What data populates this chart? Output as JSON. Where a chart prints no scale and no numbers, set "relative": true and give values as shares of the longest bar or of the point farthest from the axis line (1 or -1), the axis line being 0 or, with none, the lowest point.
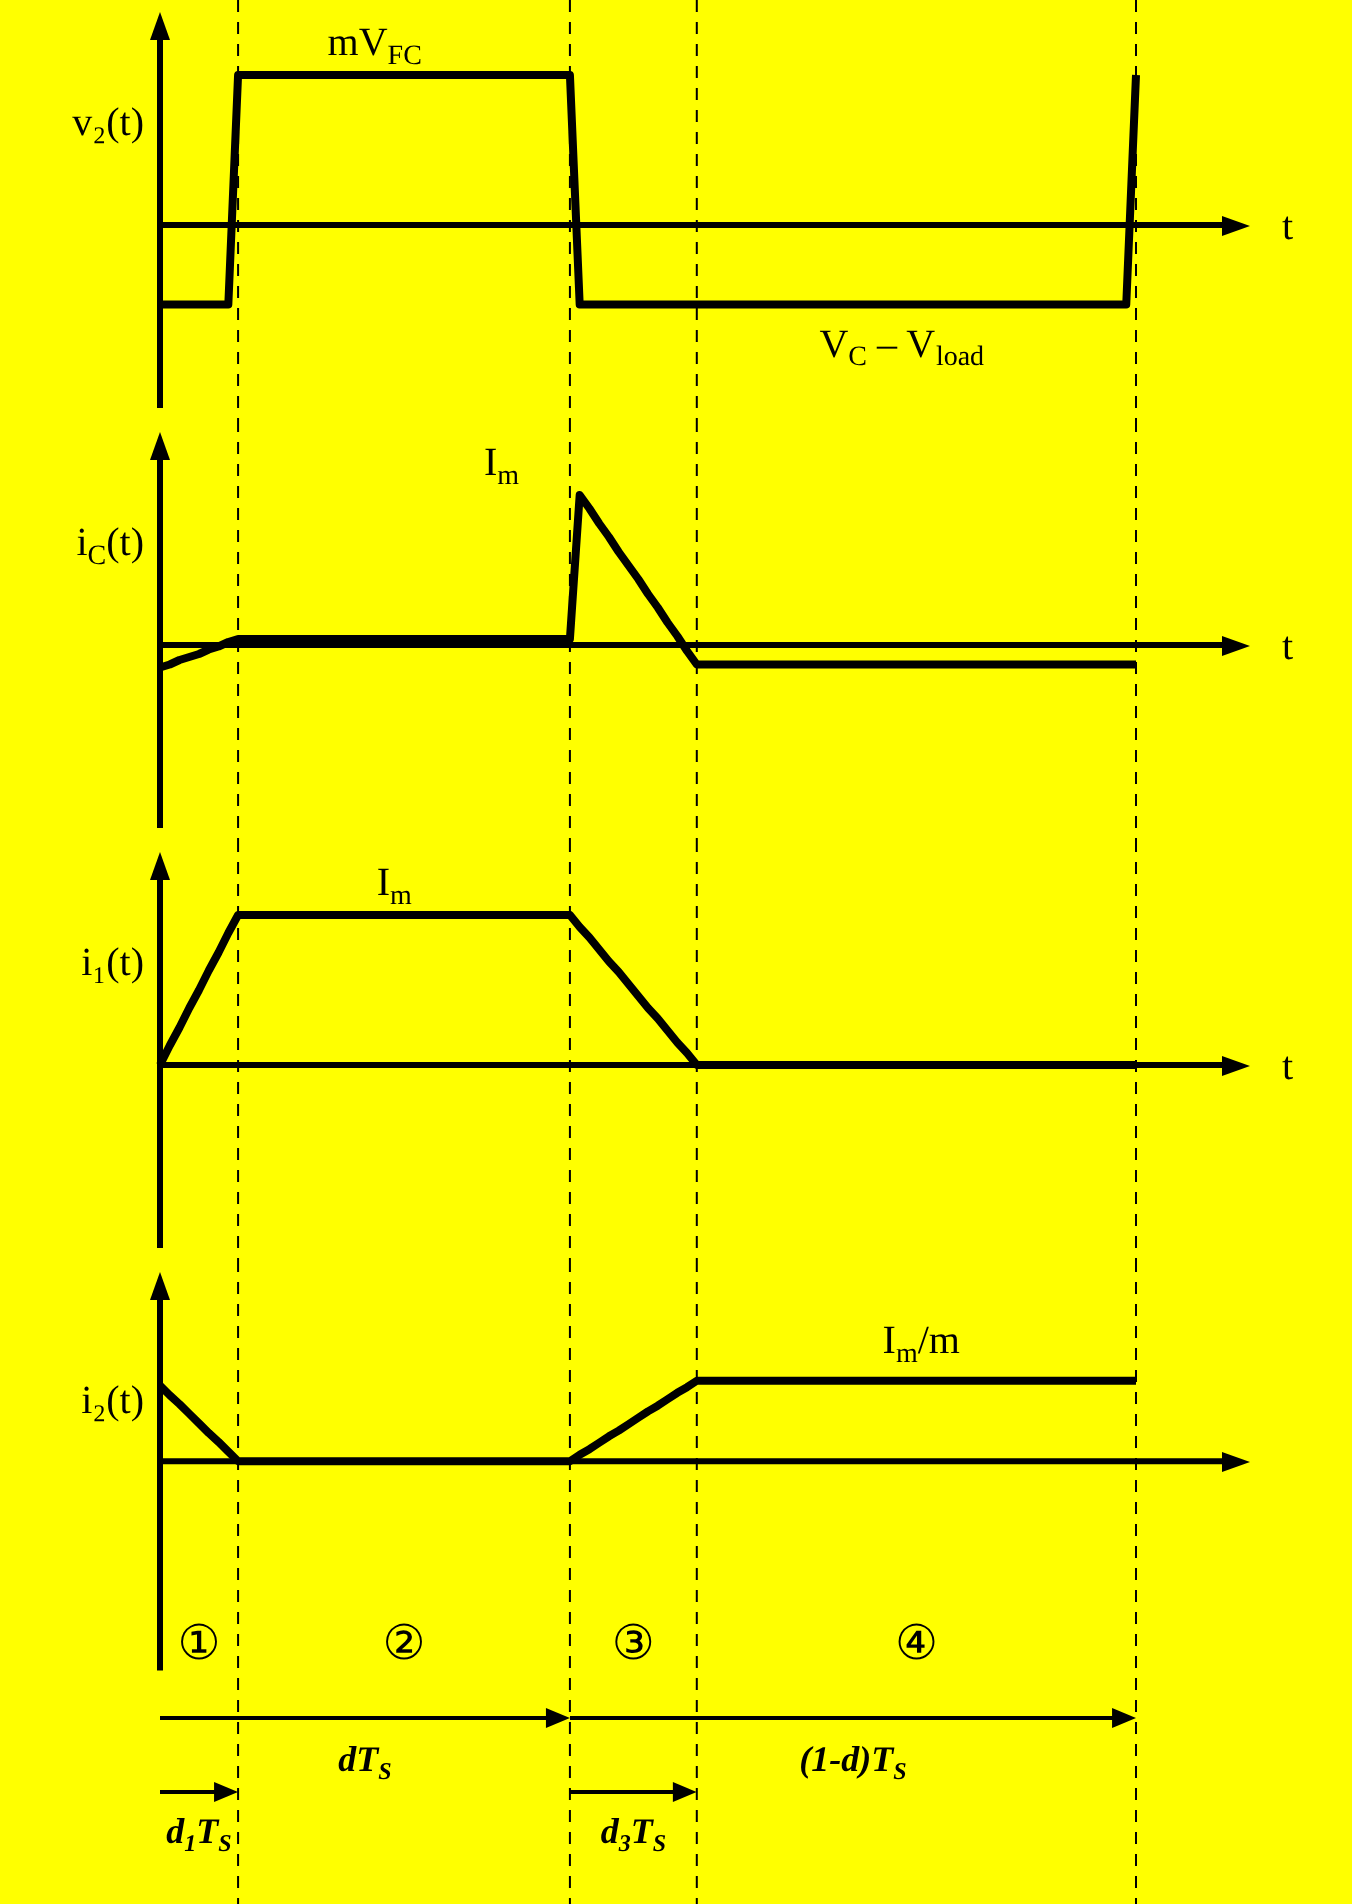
{
  "chart_data": [
    {
      "type": "line",
      "relative": true,
      "grid": "x",
      "ylabel": "v₂(t)",
      "xlabel": "t",
      "categories": [
        null,
        null,
        null,
        null,
        null,
        null,
        null,
        null,
        null,
        null,
        null,
        null,
        null,
        null,
        null,
        null,
        null,
        null,
        null,
        null,
        null,
        null,
        null,
        null,
        null,
        null,
        null,
        null,
        null,
        null,
        null,
        null,
        null,
        null,
        null,
        null,
        null,
        null,
        null,
        null,
        null,
        null,
        null,
        null,
        null,
        null,
        null,
        null,
        null,
        null,
        null,
        null,
        null,
        null,
        null,
        null,
        null,
        null,
        null,
        null,
        null,
        null,
        null,
        null,
        null,
        null,
        null,
        null,
        null,
        null,
        null,
        null,
        null,
        null,
        null,
        null,
        null,
        null,
        null,
        null,
        null,
        null,
        null,
        null,
        null,
        null,
        null,
        null,
        null,
        null,
        null,
        null,
        null,
        null,
        null,
        null,
        null,
        null,
        null,
        null,
        null
      ],
      "series": [
        {
          "color": "#000000",
          "values": [
            -0.53,
            -0.53,
            -0.53,
            -0.53,
            -0.53,
            -0.53,
            -0.53,
            -0.53,
            1,
            1,
            1,
            1,
            1,
            1,
            1,
            1,
            1,
            1,
            1,
            1,
            1,
            1,
            1,
            1,
            1,
            1,
            1,
            1,
            1,
            1,
            1,
            1,
            1,
            1,
            1,
            1,
            1,
            1,
            1,
            1,
            1,
            1,
            1,
            -0.53,
            -0.53,
            -0.53,
            -0.53,
            -0.53,
            -0.53,
            -0.53,
            -0.53,
            -0.53,
            -0.53,
            -0.53,
            -0.53,
            -0.53,
            -0.53,
            -0.53,
            -0.53,
            -0.53,
            -0.53,
            -0.53,
            -0.53,
            -0.53,
            -0.53,
            -0.53,
            -0.53,
            -0.53,
            -0.53,
            -0.53,
            -0.53,
            -0.53,
            -0.53,
            -0.53,
            -0.53,
            -0.53,
            -0.53,
            -0.53,
            -0.53,
            -0.53,
            -0.53,
            -0.53,
            -0.53,
            -0.53,
            -0.53,
            -0.53,
            -0.53,
            -0.53,
            -0.53,
            -0.53,
            -0.53,
            -0.53,
            -0.53,
            -0.53,
            -0.53,
            -0.53,
            -0.53,
            -0.53,
            -0.53,
            -0.53,
            1
          ]
        }
      ],
      "annotations": [
        "mV$_{FC}$",
        "V$_{C}$ – V$_{load}$"
      ]
    },
    {
      "type": "line",
      "relative": true,
      "grid": "x",
      "ylabel": "i$_{C}$(t)",
      "xlabel": "t",
      "categories": [
        null,
        null,
        null,
        null,
        null,
        null,
        null,
        null,
        null,
        null,
        null,
        null,
        null,
        null,
        null,
        null,
        null,
        null,
        null,
        null,
        null,
        null,
        null,
        null,
        null,
        null,
        null,
        null,
        null,
        null,
        null,
        null,
        null,
        null,
        null,
        null,
        null,
        null,
        null,
        null,
        null,
        null,
        null,
        null,
        null,
        null,
        null,
        null,
        null,
        null,
        null,
        null,
        null,
        null,
        null,
        null,
        null,
        null,
        null,
        null,
        null,
        null,
        null,
        null,
        null,
        null,
        null,
        null,
        null,
        null,
        null,
        null,
        null,
        null,
        null,
        null,
        null,
        null,
        null,
        null,
        null,
        null,
        null,
        null,
        null,
        null,
        null,
        null,
        null,
        null,
        null,
        null,
        null,
        null,
        null,
        null,
        null,
        null,
        null,
        null,
        null
      ],
      "series": [
        {
          "color": "#000000",
          "values": [
            -0.15,
            -0.13,
            -0.1,
            -0.08,
            -0.06,
            -0.03,
            -0.01,
            0.02,
            0.04,
            0.04,
            0.04,
            0.04,
            0.04,
            0.04,
            0.04,
            0.04,
            0.04,
            0.04,
            0.04,
            0.04,
            0.04,
            0.04,
            0.04,
            0.04,
            0.04,
            0.04,
            0.04,
            0.04,
            0.04,
            0.04,
            0.04,
            0.04,
            0.04,
            0.04,
            0.04,
            0.04,
            0.04,
            0.04,
            0.04,
            0.04,
            0.04,
            0.04,
            0.04,
            1,
            0.91,
            0.81,
            0.72,
            0.62,
            0.53,
            0.44,
            0.34,
            0.25,
            0.15,
            0.06,
            -0.04,
            -0.13,
            -0.13,
            -0.13,
            -0.13,
            -0.13,
            -0.13,
            -0.13,
            -0.13,
            -0.13,
            -0.13,
            -0.13,
            -0.13,
            -0.13,
            -0.13,
            -0.13,
            -0.13,
            -0.13,
            -0.13,
            -0.13,
            -0.13,
            -0.13,
            -0.13,
            -0.13,
            -0.13,
            -0.13,
            -0.13,
            -0.13,
            -0.13,
            -0.13,
            -0.13,
            -0.13,
            -0.13,
            -0.13,
            -0.13,
            -0.13,
            -0.13,
            -0.13,
            -0.13,
            -0.13,
            -0.13,
            -0.13,
            -0.13,
            -0.13,
            -0.13,
            -0.13,
            -0.13
          ]
        }
      ],
      "annotations": [
        "I$_{m}$"
      ]
    },
    {
      "type": "line",
      "relative": true,
      "grid": "x",
      "ylabel": "i₁(t)",
      "xlabel": "t",
      "categories": [
        null,
        null,
        null,
        null,
        null,
        null,
        null,
        null,
        null,
        null,
        null,
        null,
        null,
        null,
        null,
        null,
        null,
        null,
        null,
        null,
        null,
        null,
        null,
        null,
        null,
        null,
        null,
        null,
        null,
        null,
        null,
        null,
        null,
        null,
        null,
        null,
        null,
        null,
        null,
        null,
        null,
        null,
        null,
        null,
        null,
        null,
        null,
        null,
        null,
        null,
        null,
        null,
        null,
        null,
        null,
        null,
        null,
        null,
        null,
        null,
        null,
        null,
        null,
        null,
        null,
        null,
        null,
        null,
        null,
        null,
        null,
        null,
        null,
        null,
        null,
        null,
        null,
        null,
        null,
        null,
        null,
        null,
        null,
        null,
        null,
        null,
        null,
        null,
        null,
        null,
        null,
        null,
        null,
        null,
        null,
        null,
        null,
        null,
        null,
        null,
        null
      ],
      "series": [
        {
          "color": "#000000",
          "values": [
            0,
            0.13,
            0.25,
            0.38,
            0.5,
            0.63,
            0.75,
            0.88,
            1,
            1,
            1,
            1,
            1,
            1,
            1,
            1,
            1,
            1,
            1,
            1,
            1,
            1,
            1,
            1,
            1,
            1,
            1,
            1,
            1,
            1,
            1,
            1,
            1,
            1,
            1,
            1,
            1,
            1,
            1,
            1,
            1,
            1,
            1,
            0.92,
            0.85,
            0.77,
            0.69,
            0.62,
            0.54,
            0.46,
            0.38,
            0.31,
            0.23,
            0.15,
            0.08,
            0,
            0,
            0,
            0,
            0,
            0,
            0,
            0,
            0,
            0,
            0,
            0,
            0,
            0,
            0,
            0,
            0,
            0,
            0,
            0,
            0,
            0,
            0,
            0,
            0,
            0,
            0,
            0,
            0,
            0,
            0,
            0,
            0,
            0,
            0,
            0,
            0,
            0,
            0,
            0,
            0,
            0,
            0,
            0,
            0,
            0
          ]
        }
      ],
      "annotations": [
        "I$_{m}$"
      ]
    },
    {
      "type": "line",
      "relative": true,
      "grid": "x",
      "ylabel": "i₂(t)",
      "categories": [
        null,
        null,
        null,
        null,
        null,
        null,
        null,
        null,
        null,
        null,
        null,
        null,
        null,
        null,
        null,
        null,
        null,
        null,
        null,
        null,
        null,
        null,
        null,
        null,
        null,
        null,
        null,
        null,
        null,
        null,
        null,
        null,
        null,
        null,
        null,
        null,
        null,
        null,
        null,
        null,
        null,
        null,
        null,
        null,
        null,
        null,
        null,
        null,
        null,
        null,
        null,
        null,
        null,
        null,
        null,
        null,
        null,
        null,
        null,
        null,
        null,
        null,
        null,
        null,
        null,
        null,
        null,
        null,
        null,
        null,
        null,
        null,
        null,
        null,
        null,
        null,
        null,
        null,
        null,
        null,
        null,
        null,
        null,
        null,
        null,
        null,
        null,
        null,
        null,
        null,
        null,
        null,
        null,
        null,
        null,
        null,
        null,
        null,
        null,
        null,
        null
      ],
      "series": [
        {
          "color": "#000000",
          "values": [
            0.94,
            0.82,
            0.71,
            0.59,
            0.47,
            0.35,
            0.24,
            0.12,
            0,
            0,
            0,
            0,
            0,
            0,
            0,
            0,
            0,
            0,
            0,
            0,
            0,
            0,
            0,
            0,
            0,
            0,
            0,
            0,
            0,
            0,
            0,
            0,
            0,
            0,
            0,
            0,
            0,
            0,
            0,
            0,
            0,
            0,
            0,
            0.08,
            0.15,
            0.23,
            0.31,
            0.38,
            0.46,
            0.54,
            0.62,
            0.69,
            0.77,
            0.85,
            0.92,
            1,
            1,
            1,
            1,
            1,
            1,
            1,
            1,
            1,
            1,
            1,
            1,
            1,
            1,
            1,
            1,
            1,
            1,
            1,
            1,
            1,
            1,
            1,
            1,
            1,
            1,
            1,
            1,
            1,
            1,
            1,
            1,
            1,
            1,
            1,
            1,
            1,
            1,
            1,
            1,
            1,
            1,
            1,
            1,
            1,
            1
          ]
        }
      ],
      "annotations": [
        "I$_{m}$/m",
        "①",
        "②",
        "③",
        "④",
        "d$_{1}$T$_{S}$",
        "dT$_{S}$",
        "d$_{3}$T$_{S}$",
        "(1-d)T$_{S}$"
      ]
    }
  ]
}
